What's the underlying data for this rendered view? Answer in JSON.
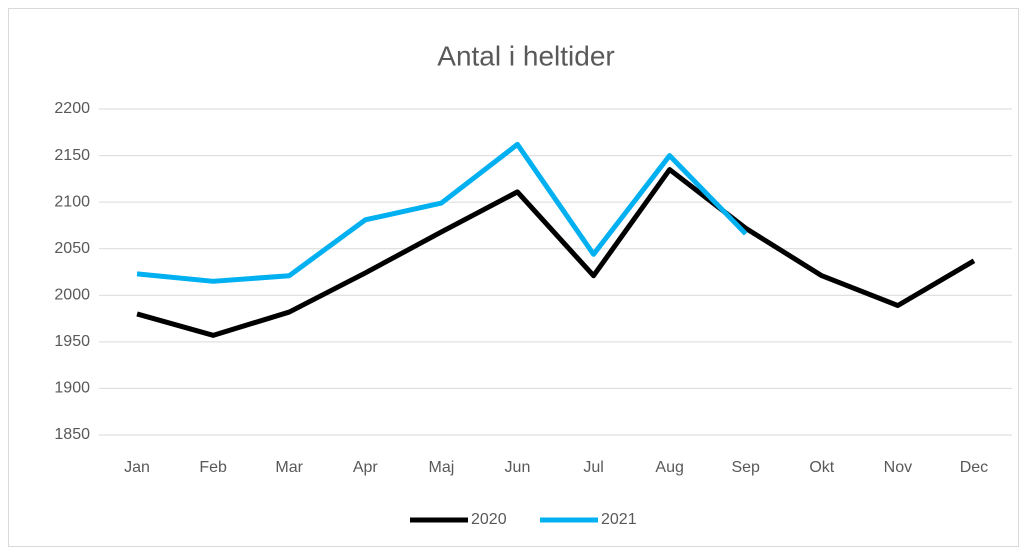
{
  "chart_data": {
    "type": "line",
    "title": "Antal i heltider",
    "categories": [
      "Jan",
      "Feb",
      "Mar",
      "Apr",
      "Maj",
      "Jun",
      "Jul",
      "Aug",
      "Sep",
      "Okt",
      "Nov",
      "Dec"
    ],
    "series": [
      {
        "name": "2020",
        "color": "#000000",
        "values": [
          1980,
          1957,
          1982,
          2024,
          2068,
          2111,
          2021,
          2135,
          2072,
          2021,
          1989,
          2037
        ]
      },
      {
        "name": "2021",
        "color": "#00b0f0",
        "values": [
          2023,
          2015,
          2021,
          2081,
          2099,
          2162,
          2044,
          2150,
          2066,
          null,
          null,
          null
        ]
      }
    ],
    "ylim": [
      1850,
      2200
    ],
    "yticks": [
      1850,
      1900,
      1950,
      2000,
      2050,
      2100,
      2150,
      2200
    ],
    "grid": true,
    "legend": "bottom"
  }
}
